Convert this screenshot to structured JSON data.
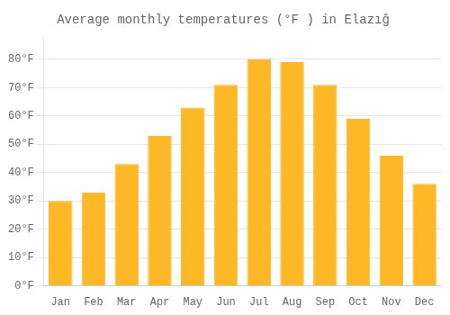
{
  "chart_data": {
    "type": "bar",
    "title": "Average monthly temperatures (°F ) in Elazığ",
    "categories": [
      "Jan",
      "Feb",
      "Mar",
      "Apr",
      "May",
      "Jun",
      "Jul",
      "Aug",
      "Sep",
      "Oct",
      "Nov",
      "Dec"
    ],
    "values": [
      30,
      33,
      43,
      53,
      63,
      71,
      80,
      79,
      71,
      59,
      46,
      36
    ],
    "color": "#FDB827",
    "ylim": [
      0,
      88
    ],
    "yticks": [
      {
        "value": 0,
        "label": "0°F"
      },
      {
        "value": 10,
        "label": "10°F"
      },
      {
        "value": 20,
        "label": "20°F"
      },
      {
        "value": 30,
        "label": "30°F"
      },
      {
        "value": 40,
        "label": "40°F"
      },
      {
        "value": 50,
        "label": "50°F"
      },
      {
        "value": 60,
        "label": "60°F"
      },
      {
        "value": 70,
        "label": "70°F"
      },
      {
        "value": 80,
        "label": "80°F"
      }
    ],
    "grid": true
  }
}
